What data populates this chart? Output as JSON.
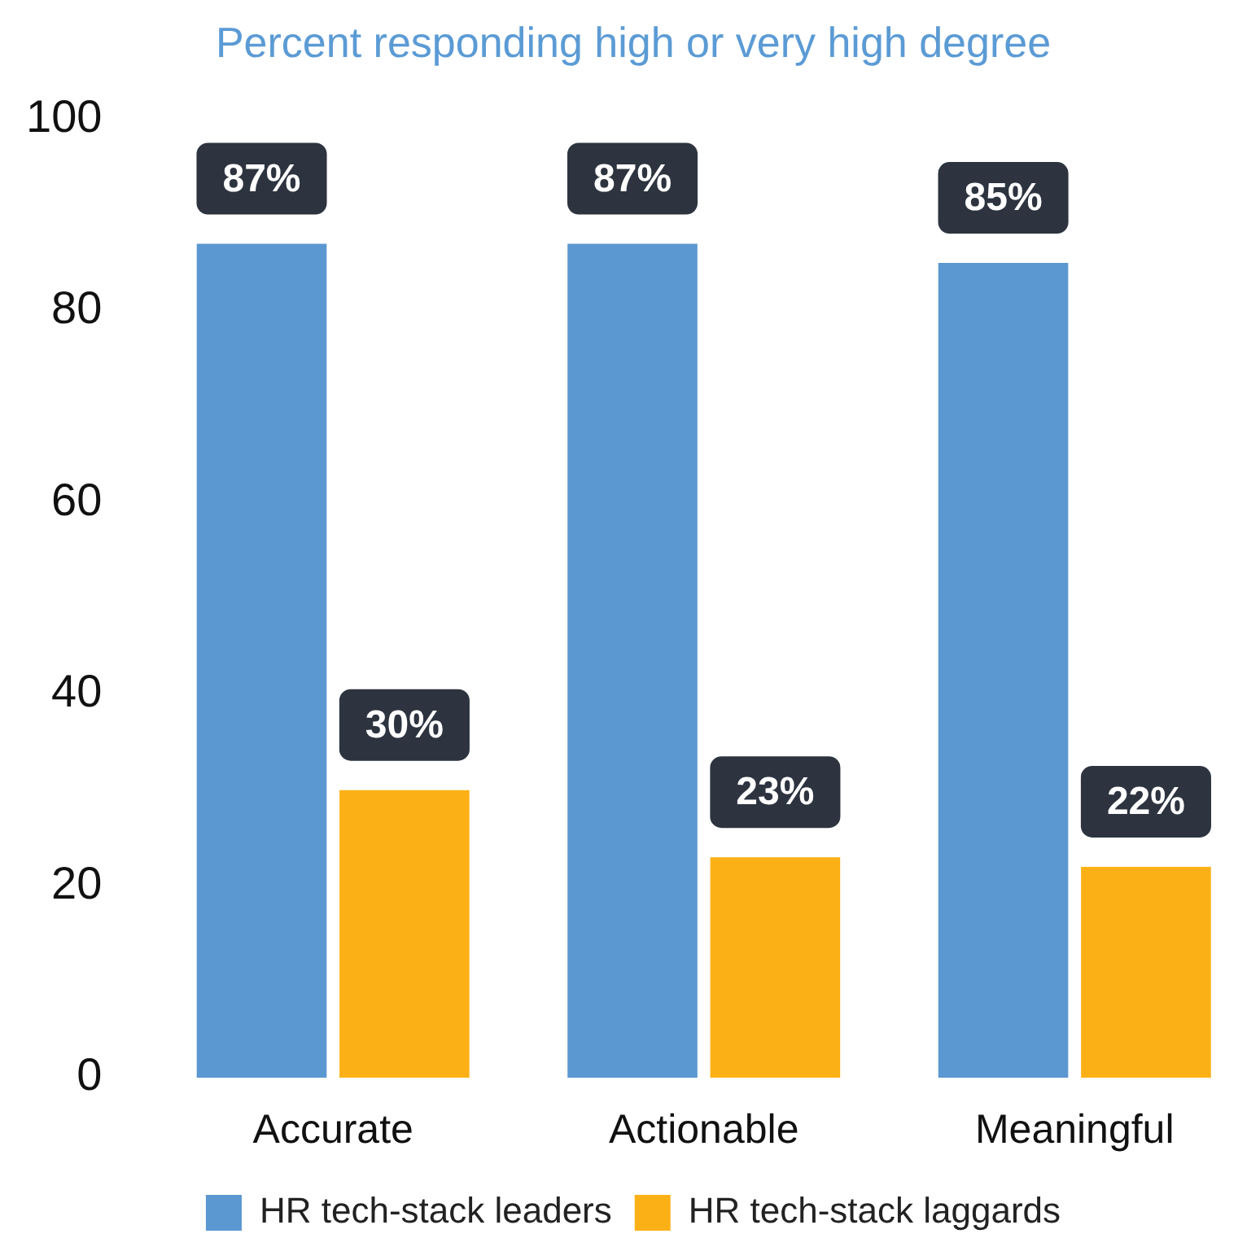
{
  "chart_data": {
    "type": "bar",
    "title": "Percent responding high or very high degree",
    "categories": [
      "Accurate",
      "Actionable",
      "Meaningful"
    ],
    "series": [
      {
        "name": "HR tech-stack leaders",
        "color": "#5b97d0",
        "values": [
          87,
          87,
          85
        ],
        "value_labels": [
          "87%",
          "87%",
          "85%"
        ]
      },
      {
        "name": "HR tech-stack laggards",
        "color": "#fbb116",
        "values": [
          30,
          23,
          22
        ],
        "value_labels": [
          "30%",
          "23%",
          "22%"
        ]
      }
    ],
    "ylim": [
      0,
      100
    ],
    "yticks": [
      0,
      20,
      40,
      60,
      80,
      100
    ],
    "legend": "bottom"
  }
}
